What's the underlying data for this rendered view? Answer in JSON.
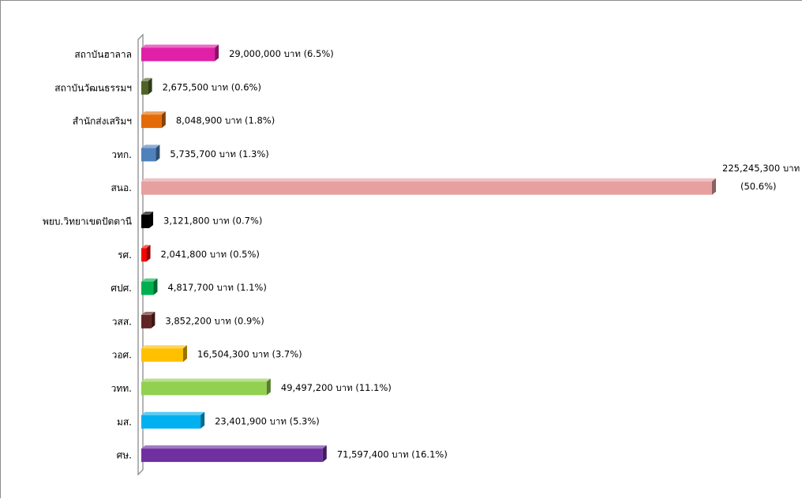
{
  "chart_data": {
    "type": "bar",
    "orientation": "horizontal",
    "style": "3d",
    "legend": "none",
    "grid": false,
    "xlim": [
      0,
      225245300
    ],
    "categories": [
      "สถาบันฮาลาล",
      "สถาบันวัฒนธรรมฯ",
      "สำนักส่งเสริมฯ",
      "วทก.",
      "สนอ.",
      "พยบ.วิทยาเขตปัตตานี",
      "รศ.",
      "ศปศ.",
      "วสส.",
      "วอศ.",
      "วทท.",
      "มส.",
      "ศษ."
    ],
    "values": [
      29000000,
      2675500,
      8048900,
      5735700,
      225245300,
      3121800,
      2041800,
      4817700,
      3852200,
      16504300,
      49497200,
      23401900,
      71597400
    ],
    "data_labels": [
      "29,000,000 บาท (6.5%)",
      "2,675,500 บาท (0.6%)",
      "8,048,900 บาท (1.8%)",
      "5,735,700 บาท (1.3%)",
      "225,245,300 บาท",
      "3,121,800 บาท (0.7%)",
      "2,041,800 บาท (0.5%)",
      "4,817,700 บาท (1.1%)",
      "3,852,200 บาท (0.9%)",
      "16,504,300 บาท (3.7%)",
      "49,497,200 บาท (11.1%)",
      "23,401,900 บาท (5.3%)",
      "71,597,400 บาท (16.1%)"
    ],
    "data_labels_line2": [
      "",
      "",
      "",
      "",
      "(50.6%)",
      "",
      "",
      "",
      "",
      "",
      "",
      "",
      ""
    ],
    "colors": [
      "#E020A8",
      "#4F6228",
      "#E36C09",
      "#4F81BD",
      "#E6A0A0",
      "#000000",
      "#FF0000",
      "#00B050",
      "#632523",
      "#FFC000",
      "#92D050",
      "#00B0F0",
      "#7030A0"
    ]
  }
}
